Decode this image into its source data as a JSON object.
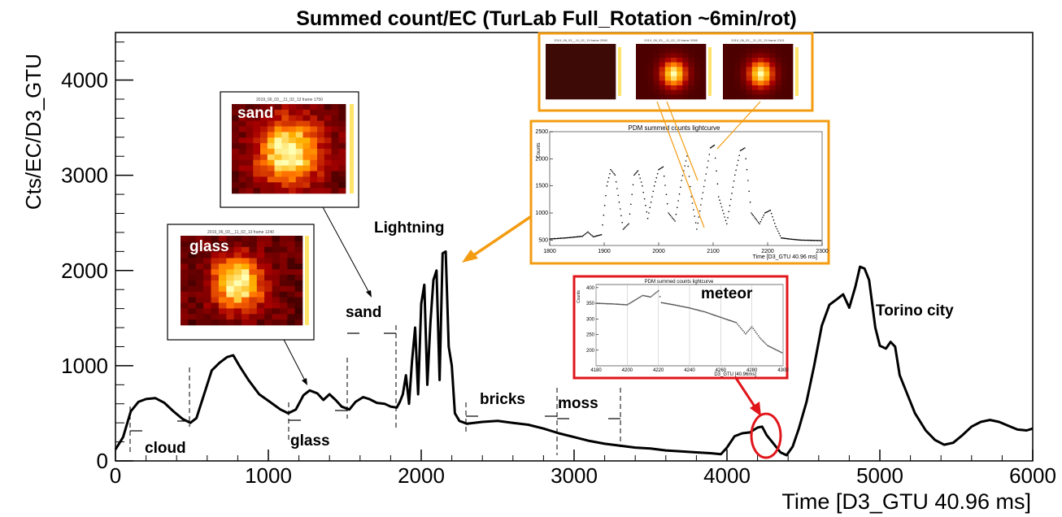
{
  "chart_data": [
    {
      "type": "line",
      "title": "Summed count/EC (TurLab Full_Rotation ~6min/rot)",
      "xlabel": "Time [D3_GTU 40.96 ms]",
      "ylabel": "Cts/EC/D3_GTU",
      "xlim": [
        0,
        6000
      ],
      "ylim": [
        0,
        4500
      ],
      "x_ticks": [
        "0",
        "1000",
        "2000",
        "3000",
        "4000",
        "5000",
        "6000"
      ],
      "y_ticks": [
        "0",
        "1000",
        "2000",
        "3000",
        "4000"
      ],
      "grid": false,
      "series": [
        {
          "points": [
            [
              0,
              120
            ],
            [
              50,
              250
            ],
            [
              100,
              520
            ],
            [
              150,
              620
            ],
            [
              200,
              650
            ],
            [
              260,
              660
            ],
            [
              320,
              610
            ],
            [
              380,
              520
            ],
            [
              440,
              440
            ],
            [
              490,
              400
            ],
            [
              530,
              450
            ],
            [
              580,
              700
            ],
            [
              630,
              950
            ],
            [
              680,
              1030
            ],
            [
              730,
              1090
            ],
            [
              770,
              1110
            ],
            [
              810,
              1000
            ],
            [
              870,
              850
            ],
            [
              940,
              700
            ],
            [
              1010,
              620
            ],
            [
              1080,
              540
            ],
            [
              1130,
              500
            ],
            [
              1180,
              540
            ],
            [
              1230,
              690
            ],
            [
              1270,
              740
            ],
            [
              1320,
              710
            ],
            [
              1360,
              640
            ],
            [
              1400,
              700
            ],
            [
              1440,
              640
            ],
            [
              1480,
              570
            ],
            [
              1530,
              540
            ],
            [
              1570,
              620
            ],
            [
              1620,
              670
            ],
            [
              1660,
              650
            ],
            [
              1710,
              610
            ],
            [
              1760,
              600
            ],
            [
              1800,
              570
            ],
            [
              1840,
              560
            ],
            [
              1860,
              620
            ],
            [
              1880,
              700
            ],
            [
              1900,
              900
            ],
            [
              1920,
              600
            ],
            [
              1940,
              1050
            ],
            [
              1960,
              1400
            ],
            [
              1980,
              700
            ],
            [
              2000,
              1650
            ],
            [
              2020,
              1850
            ],
            [
              2040,
              800
            ],
            [
              2060,
              1450
            ],
            [
              2080,
              1900
            ],
            [
              2100,
              2000
            ],
            [
              2120,
              850
            ],
            [
              2140,
              2180
            ],
            [
              2160,
              2200
            ],
            [
              2180,
              1200
            ],
            [
              2200,
              1000
            ],
            [
              2220,
              500
            ],
            [
              2250,
              420
            ],
            [
              2300,
              390
            ],
            [
              2400,
              410
            ],
            [
              2500,
              420
            ],
            [
              2600,
              400
            ],
            [
              2700,
              380
            ],
            [
              2800,
              340
            ],
            [
              2900,
              290
            ],
            [
              3000,
              250
            ],
            [
              3100,
              210
            ],
            [
              3200,
              180
            ],
            [
              3300,
              160
            ],
            [
              3400,
              140
            ],
            [
              3500,
              130
            ],
            [
              3600,
              110
            ],
            [
              3700,
              100
            ],
            [
              3800,
              90
            ],
            [
              3900,
              80
            ],
            [
              3960,
              70
            ],
            [
              4000,
              140
            ],
            [
              4050,
              260
            ],
            [
              4100,
              290
            ],
            [
              4150,
              300
            ],
            [
              4200,
              350
            ],
            [
              4230,
              360
            ],
            [
              4260,
              270
            ],
            [
              4300,
              190
            ],
            [
              4350,
              90
            ],
            [
              4390,
              60
            ],
            [
              4430,
              150
            ],
            [
              4470,
              340
            ],
            [
              4520,
              620
            ],
            [
              4570,
              1000
            ],
            [
              4620,
              1420
            ],
            [
              4670,
              1640
            ],
            [
              4720,
              1700
            ],
            [
              4760,
              1750
            ],
            [
              4800,
              1610
            ],
            [
              4840,
              1830
            ],
            [
              4870,
              2040
            ],
            [
              4900,
              2020
            ],
            [
              4930,
              1900
            ],
            [
              4970,
              1400
            ],
            [
              5000,
              1210
            ],
            [
              5040,
              1180
            ],
            [
              5070,
              1250
            ],
            [
              5100,
              1200
            ],
            [
              5130,
              900
            ],
            [
              5180,
              700
            ],
            [
              5230,
              500
            ],
            [
              5300,
              320
            ],
            [
              5360,
              220
            ],
            [
              5420,
              170
            ],
            [
              5480,
              190
            ],
            [
              5540,
              270
            ],
            [
              5600,
              360
            ],
            [
              5660,
              410
            ],
            [
              5720,
              430
            ],
            [
              5780,
              410
            ],
            [
              5840,
              370
            ],
            [
              5900,
              330
            ],
            [
              5960,
              320
            ],
            [
              6000,
              340
            ]
          ]
        }
      ],
      "annotations": [
        "cloud",
        "glass",
        "sand",
        "Lightning",
        "bricks",
        "moss",
        "meteor",
        "Torino city"
      ]
    },
    {
      "type": "line",
      "title": "PDM summed counts lightcurve",
      "xlabel": "Time [D3_GTU 40.96 ms]",
      "ylabel": "Counts",
      "xlim": [
        1800,
        2300
      ],
      "ylim": [
        400,
        2500
      ],
      "x_ticks": [
        "1800",
        "1900",
        "2000",
        "2100",
        "2200",
        "2300"
      ],
      "y_ticks": [
        "500",
        "1000",
        "1500",
        "2000",
        "2500"
      ],
      "series": [
        {
          "points": [
            [
              1800,
              520
            ],
            [
              1830,
              540
            ],
            [
              1860,
              570
            ],
            [
              1870,
              650
            ],
            [
              1880,
              560
            ],
            [
              1895,
              600
            ],
            [
              1905,
              1500
            ],
            [
              1912,
              1800
            ],
            [
              1920,
              1700
            ],
            [
              1935,
              700
            ],
            [
              1945,
              800
            ],
            [
              1955,
              1700
            ],
            [
              1962,
              1780
            ],
            [
              1970,
              1500
            ],
            [
              1980,
              900
            ],
            [
              1992,
              1500
            ],
            [
              2000,
              1800
            ],
            [
              2008,
              1850
            ],
            [
              2018,
              1000
            ],
            [
              2030,
              850
            ],
            [
              2042,
              1600
            ],
            [
              2052,
              2050
            ],
            [
              2060,
              1300
            ],
            [
              2070,
              700
            ],
            [
              2085,
              1600
            ],
            [
              2095,
              2200
            ],
            [
              2102,
              2250
            ],
            [
              2110,
              1300
            ],
            [
              2125,
              800
            ],
            [
              2140,
              1700
            ],
            [
              2150,
              2150
            ],
            [
              2158,
              2200
            ],
            [
              2170,
              1000
            ],
            [
              2185,
              800
            ],
            [
              2195,
              1000
            ],
            [
              2205,
              1050
            ],
            [
              2215,
              750
            ],
            [
              2225,
              540
            ],
            [
              2240,
              520
            ],
            [
              2260,
              500
            ],
            [
              2300,
              490
            ]
          ]
        }
      ]
    },
    {
      "type": "line",
      "title": "PDM summed counts lightcurve",
      "xlabel": "D3_GTU [40.96ms]",
      "ylabel": "Counts",
      "xlim": [
        4180,
        4300
      ],
      "ylim": [
        150,
        410
      ],
      "x_ticks": [
        "4180",
        "4200",
        "4220",
        "4240",
        "4260",
        "4280",
        "4300"
      ],
      "y_ticks": [
        "200",
        "250",
        "300",
        "350",
        "400"
      ],
      "series": [
        {
          "points": [
            [
              4180,
              350
            ],
            [
              4190,
              348
            ],
            [
              4200,
              345
            ],
            [
              4205,
              360
            ],
            [
              4210,
              375
            ],
            [
              4215,
              370
            ],
            [
              4220,
              390
            ],
            [
              4222,
              352
            ],
            [
              4230,
              345
            ],
            [
              4240,
              335
            ],
            [
              4250,
              322
            ],
            [
              4260,
              305
            ],
            [
              4270,
              288
            ],
            [
              4276,
              252
            ],
            [
              4280,
              275
            ],
            [
              4285,
              240
            ],
            [
              4290,
              215
            ],
            [
              4300,
              190
            ]
          ]
        }
      ],
      "annotations": [
        "meteor"
      ]
    }
  ],
  "insets": {
    "sand_map": {
      "caption": "2019_06_03__11_02_13 frame 1750",
      "label": "sand"
    },
    "glass_map": {
      "caption": "2019_06_03__11_02_13 frame 1240",
      "label": "glass"
    },
    "lightning_maps": [
      "2019_06_03__11_02_13 frame 2098",
      "2019_06_03__11_02_13 frame 2098",
      "2019_06_03__11_02_13 frame 2101"
    ]
  },
  "colors": {
    "line": "#000000",
    "lightning_arrow": "#f39c12",
    "meteor_highlight": "#e0161b"
  }
}
